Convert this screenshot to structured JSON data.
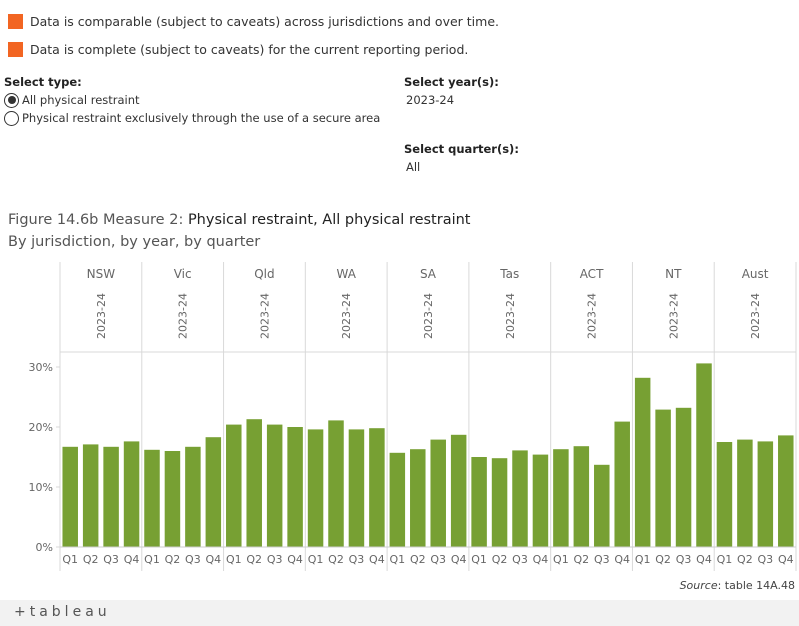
{
  "legend": [
    {
      "text": "Data is comparable (subject to caveats) across jurisdictions and over time.",
      "color": "#f26522"
    },
    {
      "text": "Data is complete (subject to caveats) for the current reporting period.",
      "color": "#f26522"
    }
  ],
  "filters": {
    "type_title": "Select type:",
    "type_options": [
      "All physical restraint",
      "Physical restraint exclusively through the use of a secure area"
    ],
    "type_selected": 0,
    "year_title": "Select year(s):",
    "year_value": "2023-24",
    "quarter_title": "Select quarter(s):",
    "quarter_value": "All"
  },
  "figure": {
    "title_prefix": "Figure 14.6b Measure 2: ",
    "title_bold": "Physical restraint, All physical restraint",
    "subtitle": "By jurisdiction, by year, by quarter"
  },
  "chart_data": {
    "type": "bar",
    "title": "Figure 14.6b Measure 2: Physical restraint, All physical restraint",
    "subtitle": "By jurisdiction, by year, by quarter",
    "xlabel": "",
    "ylabel": "",
    "ylim": [
      0,
      32
    ],
    "yticks": [
      0,
      10,
      20,
      30
    ],
    "ytick_labels": [
      "0%",
      "10%",
      "20%",
      "30%"
    ],
    "year": "2023-24",
    "quarters": [
      "Q1",
      "Q2",
      "Q3",
      "Q4"
    ],
    "bar_color": "#77a033",
    "groups": [
      {
        "name": "NSW",
        "values": [
          16.7,
          17.1,
          16.7,
          17.6
        ]
      },
      {
        "name": "Vic",
        "values": [
          16.2,
          16.0,
          16.7,
          18.3
        ]
      },
      {
        "name": "Qld",
        "values": [
          20.4,
          21.3,
          20.4,
          20.0
        ]
      },
      {
        "name": "WA",
        "values": [
          19.6,
          21.1,
          19.6,
          19.8
        ]
      },
      {
        "name": "SA",
        "values": [
          15.7,
          16.3,
          17.9,
          18.7
        ]
      },
      {
        "name": "Tas",
        "values": [
          15.0,
          14.8,
          16.1,
          15.4
        ]
      },
      {
        "name": "ACT",
        "values": [
          16.3,
          16.8,
          13.7,
          20.9
        ]
      },
      {
        "name": "NT",
        "values": [
          28.2,
          22.9,
          23.2,
          30.6
        ]
      },
      {
        "name": "Aust",
        "values": [
          17.5,
          17.9,
          17.6,
          18.6
        ]
      }
    ]
  },
  "source": {
    "label": "Source",
    "text": ": table 14A.48"
  },
  "footer": {
    "logo_text": "+tableau"
  }
}
